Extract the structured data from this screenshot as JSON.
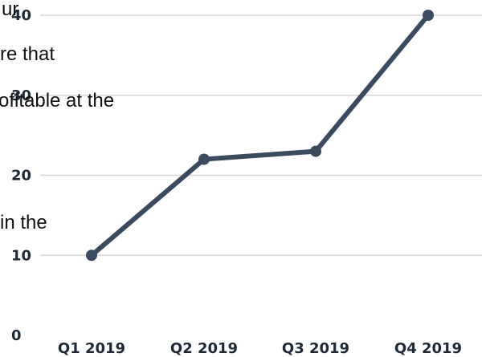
{
  "overlay_text": [
    "ur",
    "re that",
    "ofitable at the",
    "in the"
  ],
  "chart_data": {
    "type": "line",
    "title": "",
    "xlabel": "",
    "ylabel": "",
    "categories": [
      "Q1 2019",
      "Q2 2019",
      "Q3 2019",
      "Q4 2019"
    ],
    "series": [
      {
        "values": [
          10,
          22,
          23,
          40
        ]
      }
    ],
    "ylim": [
      0,
      40
    ],
    "yticks": [
      0,
      10,
      20,
      30,
      40
    ],
    "grid": true,
    "legend": "none",
    "colors": {
      "line": "#3a4a5f",
      "grid": "#d6d6d6",
      "tick_text": "#1f2a36"
    }
  }
}
